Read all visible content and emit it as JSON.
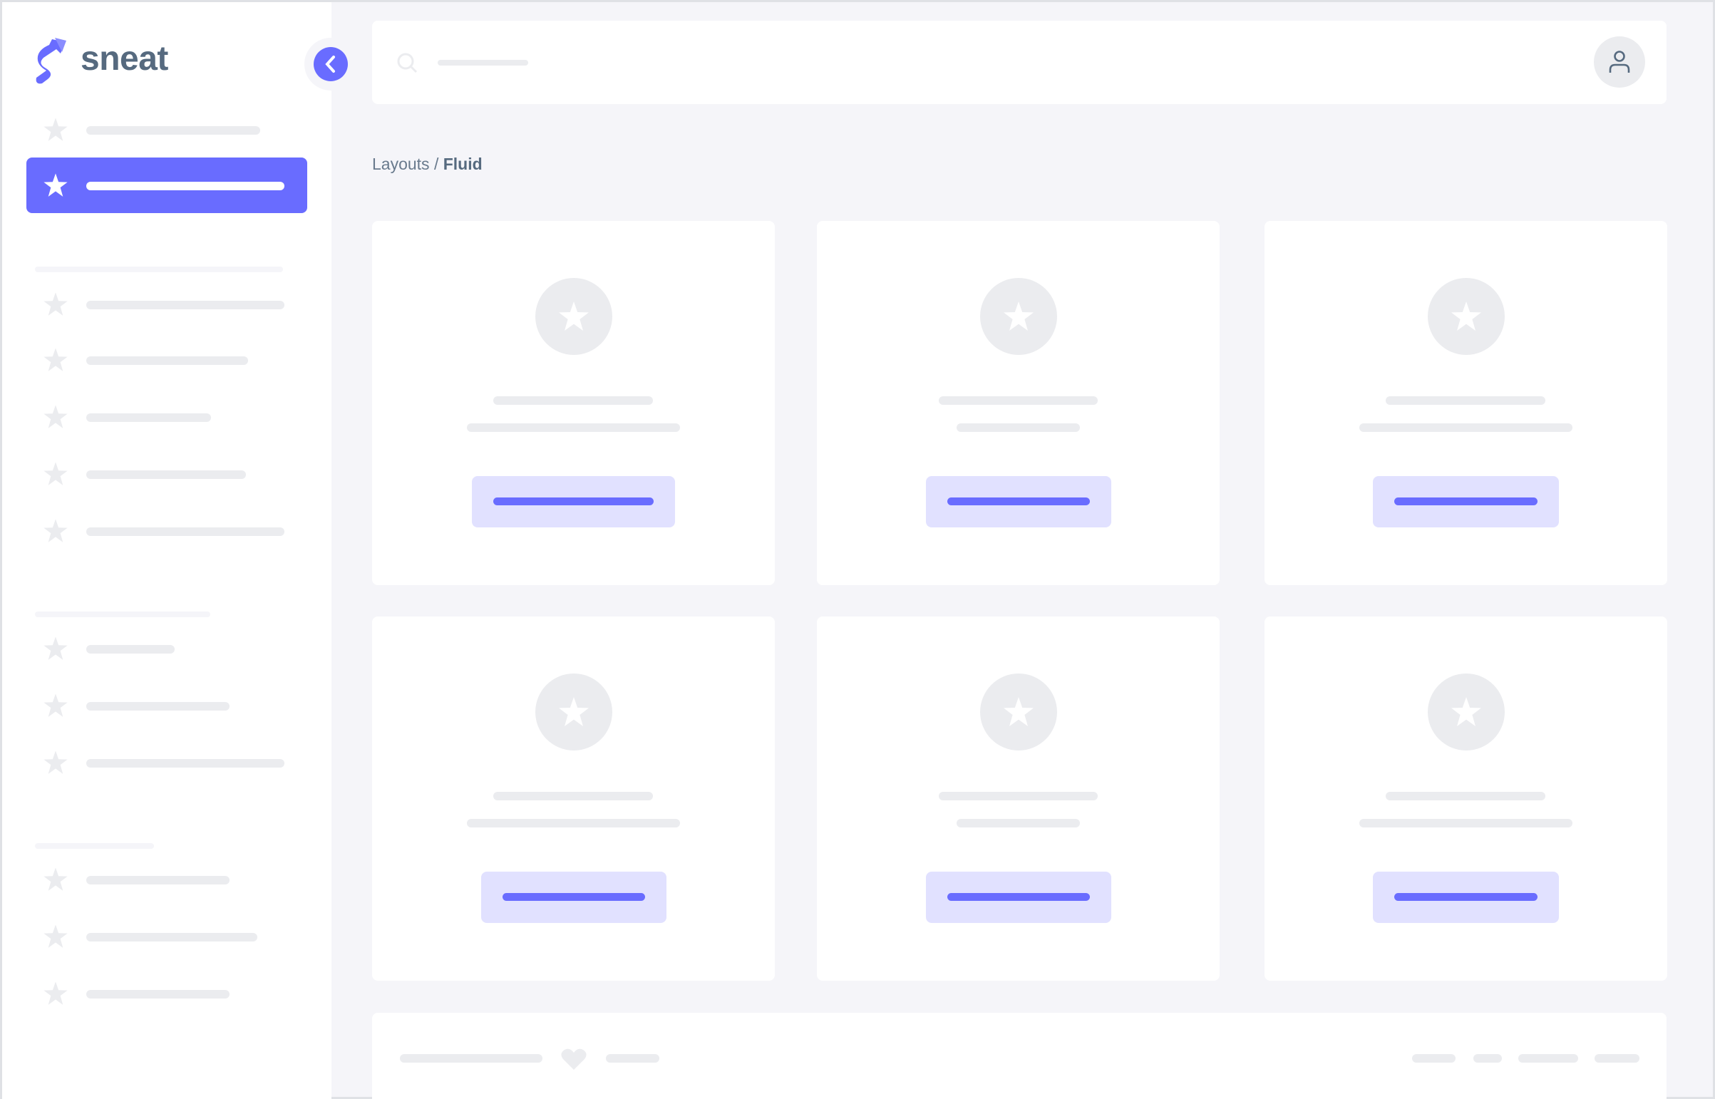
{
  "brand": {
    "name": "sneat",
    "accent": "#696cff",
    "text_color": "#566a7f"
  },
  "sidebar": {
    "collapse_icon": "chevron-left-icon",
    "item_icon": "star-icon",
    "active_index": 1
  },
  "navbar": {
    "search_icon": "search-icon",
    "user_icon": "user-icon"
  },
  "breadcrumb": {
    "parent": "Layouts",
    "separator": "/",
    "current": "Fluid"
  },
  "cards": {
    "count": 6,
    "icon": "star-icon"
  },
  "footer": {
    "icon": "heart-icon"
  }
}
